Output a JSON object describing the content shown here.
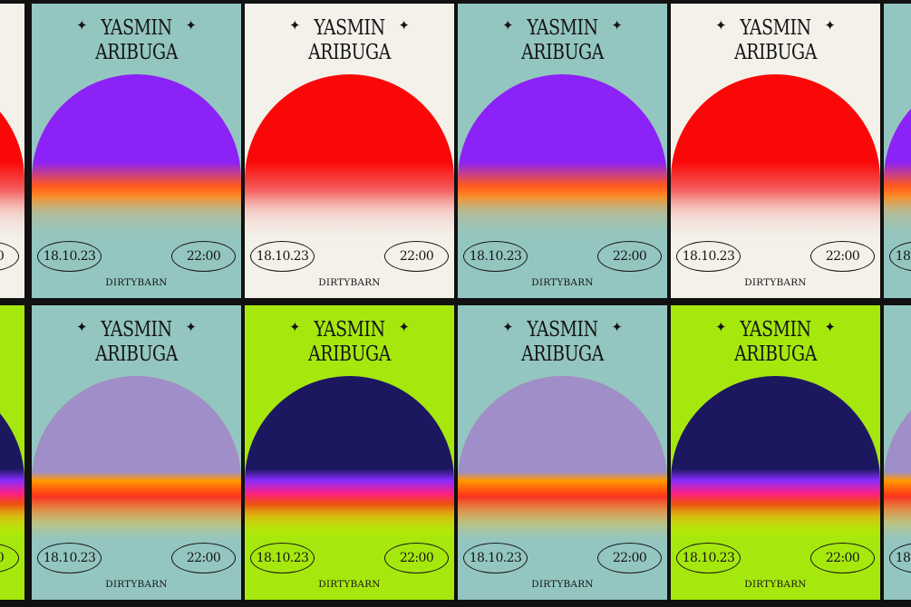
{
  "poster": {
    "title_line1": "YASMIN",
    "title_line2": "ARIBUGA",
    "sparkle_icon": "✦",
    "date": "18.10.23",
    "time": "22:00",
    "venue": "DIRTYBARN"
  },
  "themes": {
    "violet_teal": {
      "bg": "#94c6c1",
      "sun": "linear-gradient(to bottom, #8b22f7 0%, #8b22f7 52%, #ff5a1f 66%, #ff8a1f 73%, #c6b47a 82%, #94c6c1 100%)",
      "rim": "0 0 0 2px #ff7a1a, 0 0 6px 2px #ffb0f0"
    },
    "red_cream": {
      "bg": "#f3f1ea",
      "sun": "linear-gradient(to bottom, #fa0808 0%, #fa0808 52%, #f55050 66%, #f5b8b4 82%, #f3f1ea 100%)",
      "rim": "0 0 4px 1px #f56060"
    },
    "lilac_teal": {
      "bg": "#94c6c1",
      "sun": "linear-gradient(to bottom, #9f8ec7 0%, #9f8ec7 57%, #ff9a00 62%, #ff2a18 72%, #ff7a12 80%, #f0c030 88%, #94c6c1 100%)",
      "rim": "0 0 0 2px #ff3a18, 0 0 6px 2px #ffa31a"
    },
    "navy_lime": {
      "bg": "#a6e80e",
      "sun": "linear-gradient(to bottom, #1b1860 0%, #1b1860 55%, #8a2cff 62%, #ff2080 70%, #ff2a10 76%, #ff9f12 84%, #d7e500 92%, #a6e80e 100%)",
      "rim": "0 0 0 2px #6a28ff, 0 0 6px 2px #ff2a2a"
    }
  },
  "layout": [
    [
      "red_cream",
      "violet_teal",
      "red_cream",
      "violet_teal",
      "red_cream",
      "violet_teal"
    ],
    [
      "navy_lime",
      "lilac_teal",
      "navy_lime",
      "lilac_teal",
      "navy_lime",
      "lilac_teal"
    ]
  ]
}
